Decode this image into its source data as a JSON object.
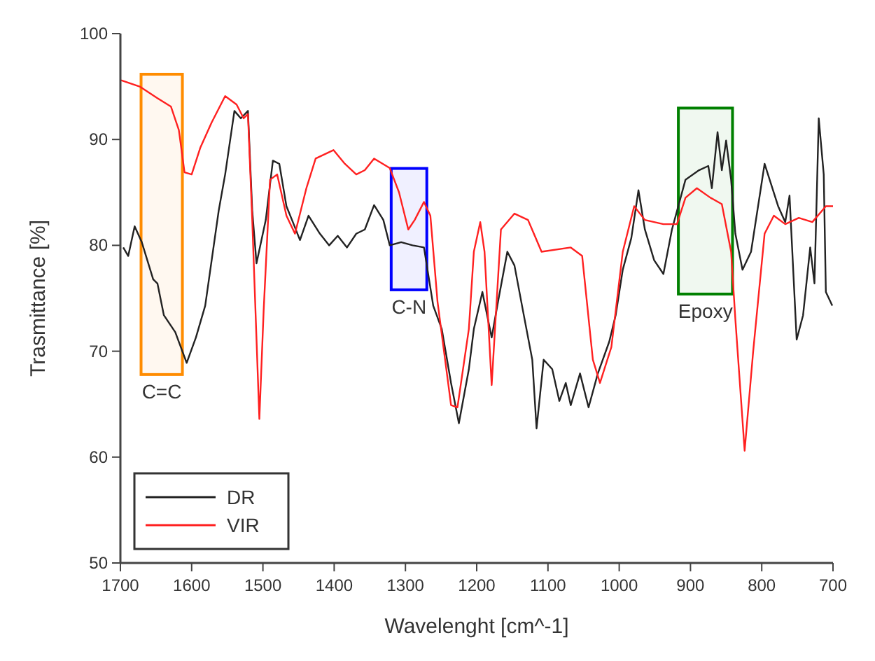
{
  "chart_data": {
    "type": "line",
    "xlabel": "Wavelenght [cm^-1]",
    "ylabel": "Trasmittance [%]",
    "xlim": [
      1700,
      700
    ],
    "xticks": [
      1700,
      1600,
      1500,
      1400,
      1300,
      1200,
      1100,
      1000,
      900,
      800,
      700
    ],
    "ylim": [
      50,
      100
    ],
    "yticks": [
      50,
      60,
      70,
      80,
      90,
      100
    ],
    "grid": false,
    "legend": "bottom left",
    "line_style": "solid",
    "marker": "none",
    "bands": [
      {
        "axis": "x",
        "from": 1671,
        "to": 1613,
        "label": "C=C",
        "color": "#ff8c00"
      },
      {
        "axis": "x",
        "from": 1320,
        "to": 1270,
        "label": "C-N",
        "color": "#0000ff"
      },
      {
        "axis": "x",
        "from": 917,
        "to": 841,
        "label": "Epoxy",
        "color": "#008000"
      }
    ],
    "series": [
      {
        "name": "DR",
        "color": "#222222",
        "x": [
          1696,
          1689,
          1680,
          1670,
          1654,
          1648,
          1639,
          1623,
          1607,
          1594,
          1581,
          1562,
          1553,
          1540,
          1531,
          1521,
          1515,
          1509,
          1496,
          1486,
          1477,
          1467,
          1458,
          1448,
          1436,
          1420,
          1407,
          1395,
          1382,
          1369,
          1357,
          1344,
          1331,
          1322,
          1306,
          1290,
          1274,
          1261,
          1249,
          1236,
          1225,
          1211,
          1204,
          1192,
          1179,
          1170,
          1157,
          1147,
          1135,
          1122,
          1116,
          1106,
          1094,
          1084,
          1075,
          1068,
          1055,
          1043,
          1030,
          1014,
          1005,
          995,
          983,
          973,
          964,
          951,
          938,
          926,
          907,
          888,
          875,
          870,
          862,
          856,
          850,
          843,
          837,
          827,
          815,
          796,
          777,
          767,
          761,
          751,
          742,
          732,
          726,
          720,
          713,
          710,
          701
        ],
        "values": [
          79.8,
          79,
          81.8,
          80.3,
          76.8,
          76.4,
          73.4,
          71.8,
          68.9,
          71.3,
          74.3,
          83.3,
          86.7,
          92.7,
          92,
          92.7,
          83.3,
          78.3,
          82.4,
          88,
          87.7,
          83.7,
          82.2,
          80.5,
          82.8,
          81.1,
          80,
          80.9,
          79.8,
          81.1,
          81.5,
          83.8,
          82.4,
          80,
          80.3,
          80,
          79.8,
          74.3,
          72.1,
          67,
          63.2,
          68.3,
          72.1,
          75.6,
          71.3,
          74.7,
          79.4,
          78.1,
          73.8,
          69.2,
          62.7,
          69.2,
          68.3,
          65.3,
          67,
          64.9,
          67.9,
          64.7,
          67.9,
          70.9,
          73.4,
          77.7,
          80.7,
          85.2,
          81.5,
          78.6,
          77.3,
          81.5,
          86.2,
          87.1,
          87.5,
          85.4,
          90.7,
          87.1,
          89.9,
          86.2,
          81.1,
          77.7,
          79.4,
          87.7,
          83.7,
          82.2,
          84.7,
          71.1,
          73.4,
          79.8,
          76.4,
          92,
          86.7,
          75.6,
          74.3
        ]
      },
      {
        "name": "VIR",
        "color": "#ff2020",
        "x": [
          1699,
          1673,
          1648,
          1629,
          1618,
          1610,
          1600,
          1588,
          1572,
          1553,
          1537,
          1527,
          1521,
          1515,
          1505,
          1499,
          1490,
          1480,
          1467,
          1455,
          1439,
          1426,
          1401,
          1385,
          1369,
          1357,
          1344,
          1322,
          1309,
          1296,
          1287,
          1274,
          1265,
          1255,
          1236,
          1227,
          1211,
          1204,
          1195,
          1189,
          1179,
          1166,
          1147,
          1128,
          1109,
          1068,
          1052,
          1037,
          1027,
          1011,
          995,
          979,
          964,
          938,
          919,
          907,
          891,
          872,
          856,
          843,
          837,
          824,
          812,
          796,
          783,
          767,
          748,
          729,
          710,
          700
        ],
        "values": [
          95.6,
          95,
          93.9,
          93.1,
          90.9,
          86.9,
          86.7,
          89.2,
          91.6,
          94.1,
          93.3,
          92,
          92.4,
          82.4,
          63.6,
          73.8,
          86.2,
          86.7,
          82.8,
          81.1,
          85.4,
          88.2,
          89,
          87.7,
          86.7,
          87.1,
          88.2,
          87.3,
          85,
          81.5,
          82.4,
          84.1,
          82.8,
          74.7,
          64.9,
          64.7,
          72.1,
          79.4,
          82.2,
          79.4,
          66.8,
          81.5,
          83,
          82.4,
          79.4,
          79.8,
          79,
          69.2,
          67,
          70.4,
          79.4,
          83.7,
          82.4,
          82,
          82,
          84.5,
          85.4,
          84.5,
          83.9,
          79.4,
          73,
          60.6,
          70,
          81.1,
          82.8,
          82,
          82.6,
          82.2,
          83.7,
          83.7
        ]
      }
    ]
  }
}
